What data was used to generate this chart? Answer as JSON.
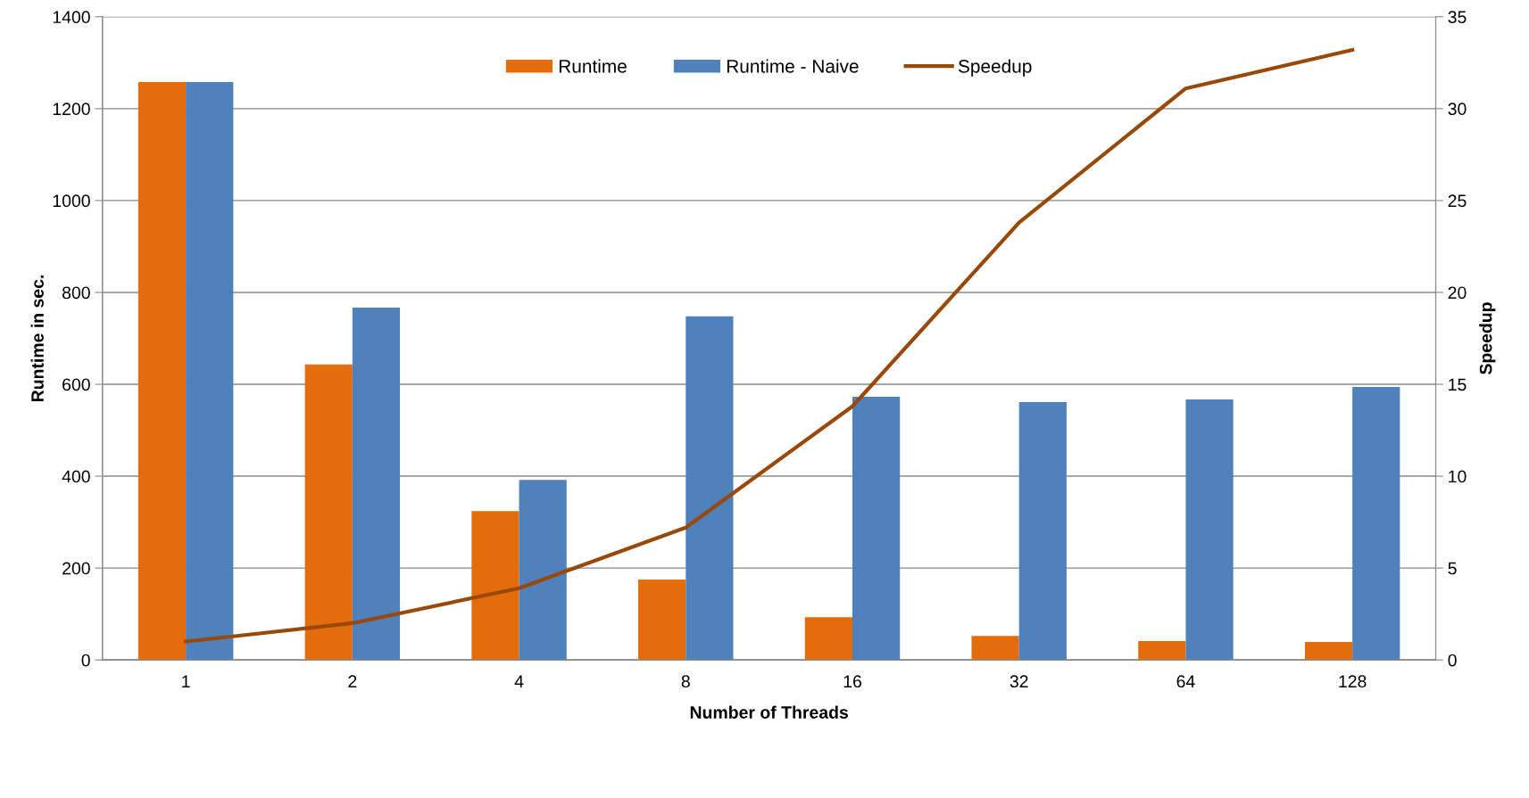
{
  "chart_data": {
    "type": "bar",
    "xlabel": "Number of Threads",
    "ylabel": "Runtime in sec.",
    "y2label": "Speedup",
    "categories": [
      "1",
      "2",
      "4",
      "8",
      "16",
      "32",
      "64",
      "128"
    ],
    "series": [
      {
        "name": "Runtime",
        "color": "#e46c0a",
        "values": [
          1258,
          643,
          324,
          175,
          93,
          52,
          41,
          39
        ]
      },
      {
        "name": "Runtime - Naive",
        "color": "#4f81bd",
        "values": [
          1258,
          767,
          392,
          748,
          573,
          561,
          567,
          594
        ]
      },
      {
        "name": "Speedup",
        "type": "line",
        "axis": "y2",
        "color": "#984807",
        "values": [
          1.0,
          2.0,
          3.9,
          7.2,
          13.8,
          23.8,
          31.1,
          33.2
        ]
      }
    ],
    "ylim": [
      0,
      1400
    ],
    "yticks": [
      0,
      200,
      400,
      600,
      800,
      1000,
      1200,
      1400
    ],
    "y2lim": [
      0,
      35
    ],
    "y2ticks": [
      0,
      5,
      10,
      15,
      20,
      25,
      30,
      35
    ],
    "grid": "y",
    "legend": "top",
    "marker": "none",
    "line_style": "solid"
  }
}
